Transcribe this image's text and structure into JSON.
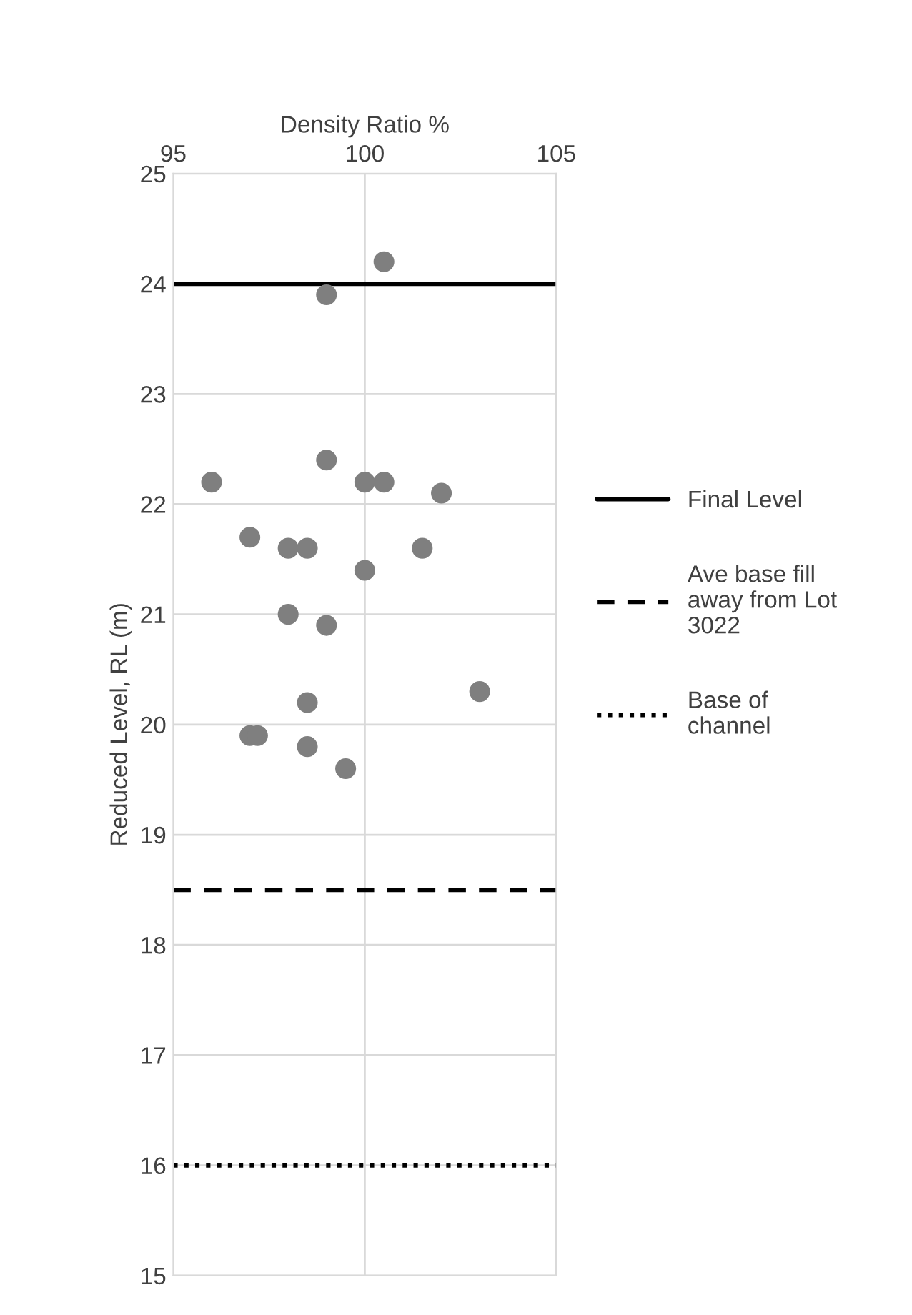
{
  "chart_data": {
    "type": "scatter",
    "xlabel": "Density Ratio %",
    "ylabel": "Reduced Level, RL (m)",
    "x": [
      100.5,
      99,
      99,
      96,
      100,
      100.5,
      102,
      97,
      98,
      98.5,
      101.5,
      100,
      98,
      99,
      98.5,
      103,
      97,
      97.2,
      98.5,
      99.5
    ],
    "values": [
      24.2,
      23.9,
      22.4,
      22.2,
      22.2,
      22.2,
      22.1,
      21.7,
      21.6,
      21.6,
      21.6,
      21.4,
      21.0,
      20.9,
      20.2,
      20.3,
      19.9,
      19.9,
      19.8,
      19.6
    ],
    "color": "#7f7f7f",
    "marker": "circle",
    "xlim": [
      95,
      105
    ],
    "xticks": [
      95,
      100,
      105
    ],
    "ylim": [
      15,
      25
    ],
    "yticks": [
      15,
      16,
      17,
      18,
      19,
      20,
      21,
      22,
      23,
      24,
      25
    ],
    "grid": true,
    "legend": "right",
    "ref_lines": [
      {
        "axis": "y",
        "value": 24,
        "label": "Final Level",
        "color": "#000000",
        "line_style": "solid"
      },
      {
        "axis": "y",
        "value": 18.5,
        "label": "Ave base fill away from Lot 3022",
        "color": "#000000",
        "line_style": "dashed"
      },
      {
        "axis": "y",
        "value": 16,
        "label": "Base of channel",
        "color": "#000000",
        "line_style": "dotted"
      }
    ]
  }
}
